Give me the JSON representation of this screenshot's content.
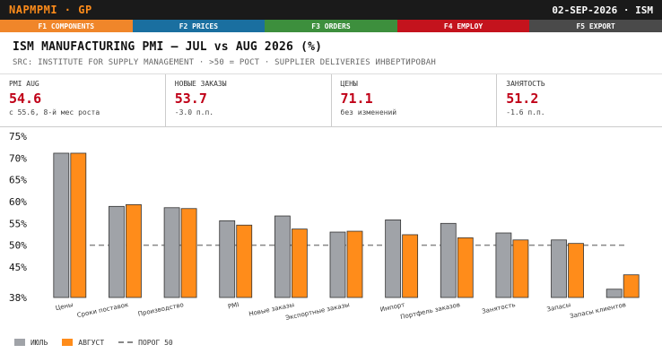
{
  "topbar": {
    "ticker": "NAPMPMI · GP",
    "date": "02-SEP-2026 · ISM"
  },
  "fkeys": [
    {
      "label": "F1 COMPONENTS",
      "color": "#f0862a"
    },
    {
      "label": "F2 PRICES",
      "color": "#1a6fa0"
    },
    {
      "label": "F3 ORDERS",
      "color": "#3d8f3d"
    },
    {
      "label": "F4 EMPLOY",
      "color": "#c4131d"
    },
    {
      "label": "F5 EXPORT",
      "color": "#4a4a4a"
    }
  ],
  "header": {
    "title": "ISM MANUFACTURING PMI — JUL vs AUG 2026 (%)",
    "subtitle": "SRC: INSTITUTE FOR SUPPLY MANAGEMENT · >50 = РОСТ · SUPPLIER DELIVERIES ИНВЕРТИРОВАН"
  },
  "stats": [
    {
      "label": "PMI AUG",
      "value": "54.6",
      "note": "с 55.6, 8-й мес роста"
    },
    {
      "label": "НОВЫЕ ЗАКАЗЫ",
      "value": "53.7",
      "note": "-3.0 п.п."
    },
    {
      "label": "ЦЕНЫ",
      "value": "71.1",
      "note": "без изменений"
    },
    {
      "label": "ЗАНЯТОСТЬ",
      "value": "51.2",
      "note": "-1.6 п.п."
    }
  ],
  "chart_data": {
    "type": "bar",
    "categories": [
      "Цены",
      "Сроки поставок",
      "Производство",
      "PMI",
      "Новые заказы",
      "Экспортные заказы",
      "Импорт",
      "Портфель заказов",
      "Занятость",
      "Запасы",
      "Запасы клиентов"
    ],
    "series": [
      {
        "name": "ИЮЛЬ",
        "color": "#a0a3a8",
        "values": [
          71.1,
          58.9,
          58.6,
          55.6,
          56.7,
          53.0,
          55.8,
          55.0,
          52.8,
          51.2,
          39.9
        ]
      },
      {
        "name": "АВГУСТ",
        "color": "#ff8c1a",
        "values": [
          71.1,
          59.3,
          58.4,
          54.6,
          53.7,
          53.2,
          52.4,
          51.7,
          51.2,
          50.4,
          43.2
        ]
      }
    ],
    "reference": {
      "name": "ПОРОГ 50",
      "value": 50
    },
    "yticks": [
      "75%",
      "70%",
      "65%",
      "60%",
      "55%",
      "50%",
      "45%",
      "38%"
    ],
    "ytick_values": [
      75,
      70,
      65,
      60,
      55,
      50,
      45,
      38
    ],
    "ylim": [
      38,
      75
    ]
  },
  "legend": {
    "jul": "ИЮЛЬ",
    "aug": "АВГУСТ",
    "threshold": "ПОРОГ 50"
  }
}
